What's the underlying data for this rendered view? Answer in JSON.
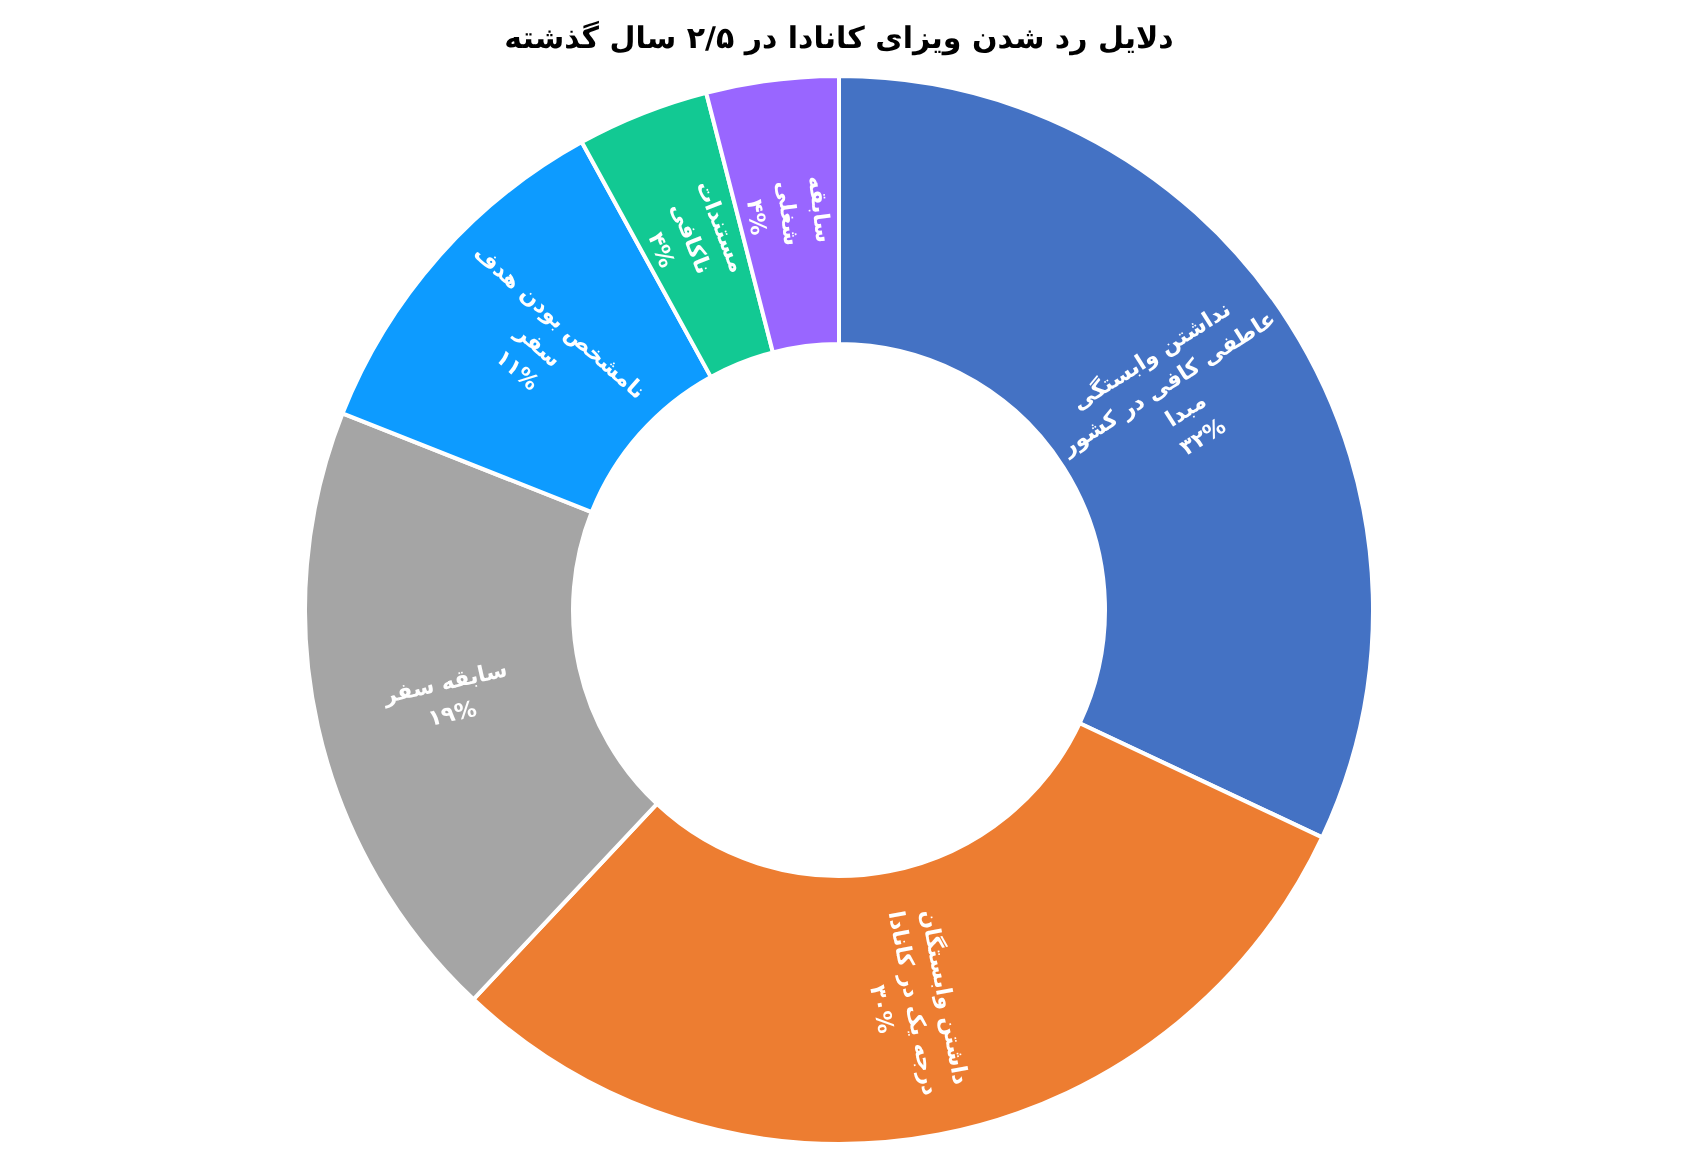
{
  "chart_data": {
    "type": "donut",
    "title": "دلایل رد شدن ویزای کانادا در ۲/۵ سال گذشته",
    "categories": [
      "نداشتن وابستگی عاطفی کافی در کشور مبدا",
      "داشتن وابستگان درجه یک در کانادا",
      "سابقه سفر",
      "نامشخص بودن هدف سفر",
      "مستندات ناکافی",
      "سابقه شغلی"
    ],
    "values": [
      32,
      30,
      19,
      11,
      4,
      4
    ],
    "value_labels": [
      "۳۲%",
      "۳۰%",
      "۱۹%",
      "۱۱%",
      "۴%",
      "۴%"
    ],
    "colors": [
      "#4472c4",
      "#ed7d31",
      "#a5a5a5",
      "#0d9bff",
      "#12c993",
      "#9966ff"
    ]
  }
}
